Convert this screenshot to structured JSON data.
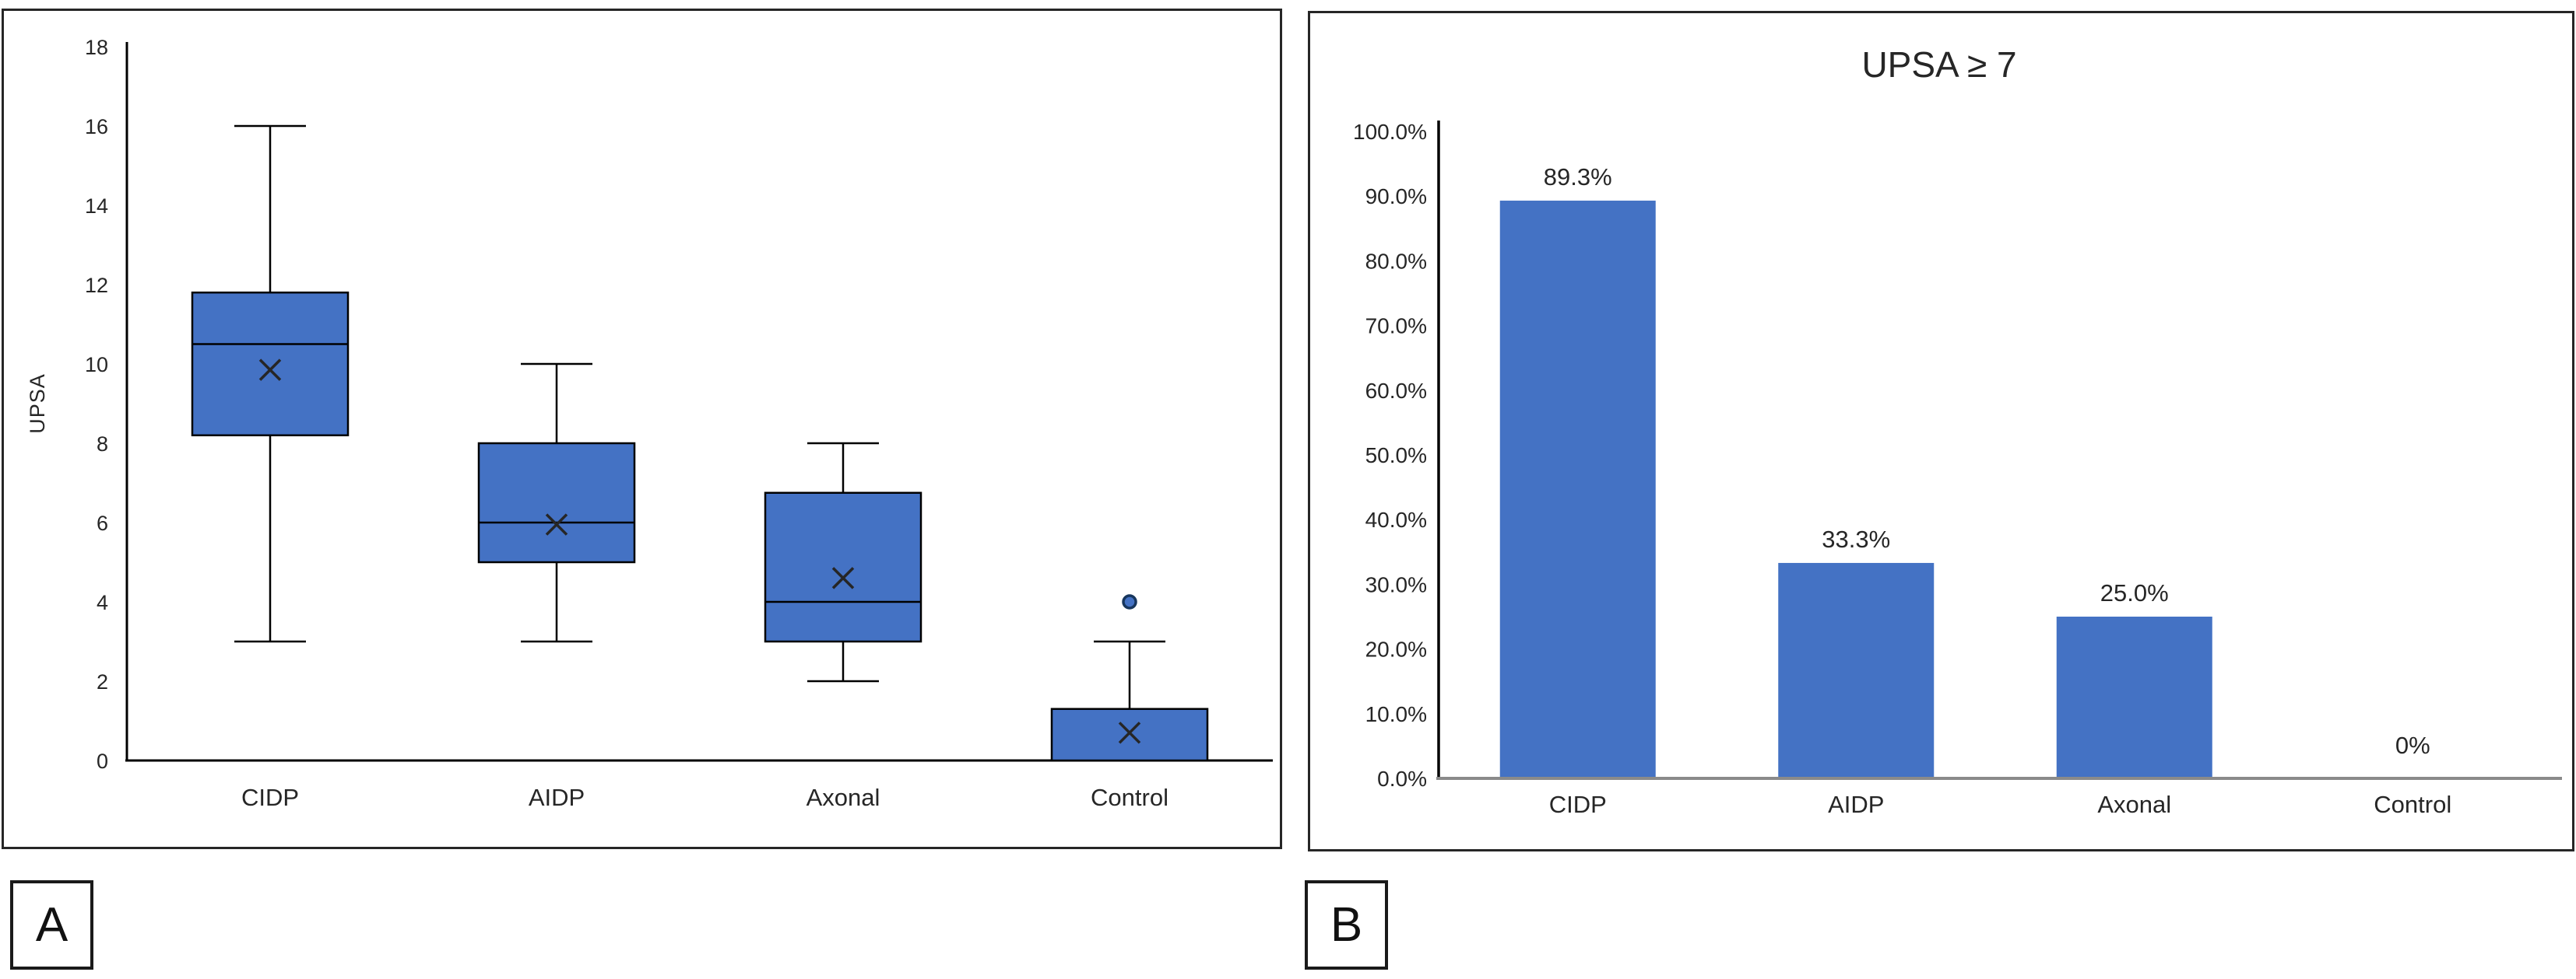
{
  "figure": {
    "panel_a_label": "A",
    "panel_b_label": "B"
  },
  "colors": {
    "box_fill": "#4472C4",
    "box_stroke": "#000000",
    "bar_fill": "#4472C4",
    "axis_color": "#000000",
    "baseline_gray": "#8a8a8a",
    "text_color": "#262626",
    "mean_marker": "#262626",
    "outlier_stroke": "#17365d"
  },
  "chart_data": [
    {
      "type": "boxplot",
      "panel": "A",
      "title": "",
      "xlabel": "",
      "ylabel": "UPSA",
      "ylim": [
        0,
        18
      ],
      "ytick_step": 2,
      "grid": false,
      "categories": [
        "CIDP",
        "AIDP",
        "Axonal",
        "Control"
      ],
      "series": [
        {
          "category": "CIDP",
          "min": 3,
          "q1": 8.2,
          "median": 10.5,
          "q3": 11.8,
          "max": 16,
          "mean": 9.85,
          "outliers": []
        },
        {
          "category": "AIDP",
          "min": 3,
          "q1": 5,
          "median": 6,
          "q3": 8,
          "max": 10,
          "mean": 5.95,
          "outliers": []
        },
        {
          "category": "Axonal",
          "min": 2,
          "q1": 3,
          "median": 4,
          "q3": 6.75,
          "max": 8,
          "mean": 4.6,
          "outliers": []
        },
        {
          "category": "Control",
          "min": 0,
          "q1": 0,
          "median": 0,
          "q3": 1.3,
          "max": 3,
          "mean": 0.7,
          "outliers": [
            4
          ]
        }
      ]
    },
    {
      "type": "bar",
      "panel": "B",
      "title": "UPSA ≥ 7",
      "xlabel": "",
      "ylabel": "",
      "ylim": [
        0,
        100
      ],
      "ytick_step": 10,
      "ytick_suffix": "%",
      "ytick_decimals": 1,
      "grid": false,
      "legend": "none",
      "categories": [
        "CIDP",
        "AIDP",
        "Axonal",
        "Control"
      ],
      "values": [
        89.3,
        33.3,
        25.0,
        0
      ],
      "data_labels": [
        "89.3%",
        "33.3%",
        "25.0%",
        "0%"
      ]
    }
  ]
}
